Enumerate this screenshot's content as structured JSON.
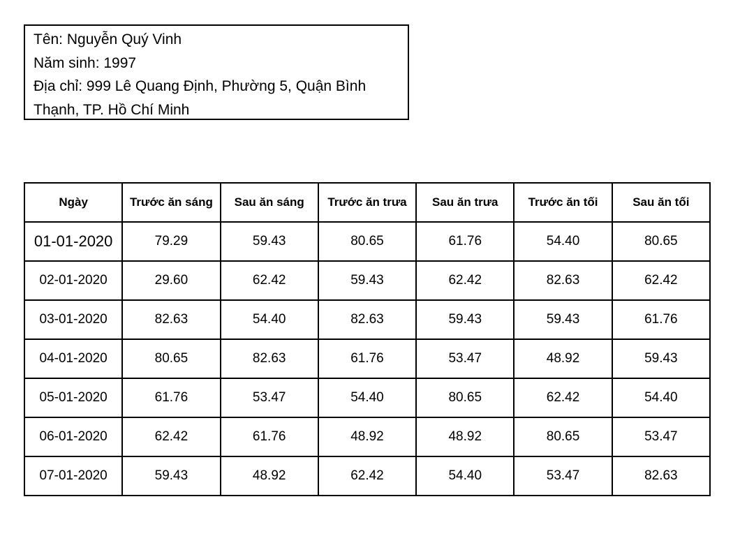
{
  "info": {
    "name_line": "Tên: Nguyễn Quý Vinh",
    "birth_line": "Năm sinh: 1997",
    "address_line": "Địa chỉ: 999 Lê Quang Định, Phường 5, Quận Bình Thạnh, TP. Hồ Chí Minh"
  },
  "table": {
    "headers": [
      "Ngày",
      "Trước ăn sáng",
      "Sau ăn sáng",
      "Trước ăn trưa",
      "Sau ăn trưa",
      "Trước ăn tối",
      "Sau ăn tối"
    ],
    "rows": [
      [
        "01-01-2020",
        "79.29",
        "59.43",
        "80.65",
        "61.76",
        "54.40",
        "80.65"
      ],
      [
        "02-01-2020",
        "29.60",
        "62.42",
        "59.43",
        "62.42",
        "82.63",
        "62.42"
      ],
      [
        "03-01-2020",
        "82.63",
        "54.40",
        "82.63",
        "59.43",
        "59.43",
        "61.76"
      ],
      [
        "04-01-2020",
        "80.65",
        "82.63",
        "61.76",
        "53.47",
        "48.92",
        "59.43"
      ],
      [
        "05-01-2020",
        "61.76",
        "53.47",
        "54.40",
        "80.65",
        "62.42",
        "54.40"
      ],
      [
        "06-01-2020",
        "62.42",
        "61.76",
        "48.92",
        "48.92",
        "80.65",
        "53.47"
      ],
      [
        "07-01-2020",
        "59.43",
        "48.92",
        "62.42",
        "54.40",
        "53.47",
        "82.63"
      ]
    ]
  }
}
